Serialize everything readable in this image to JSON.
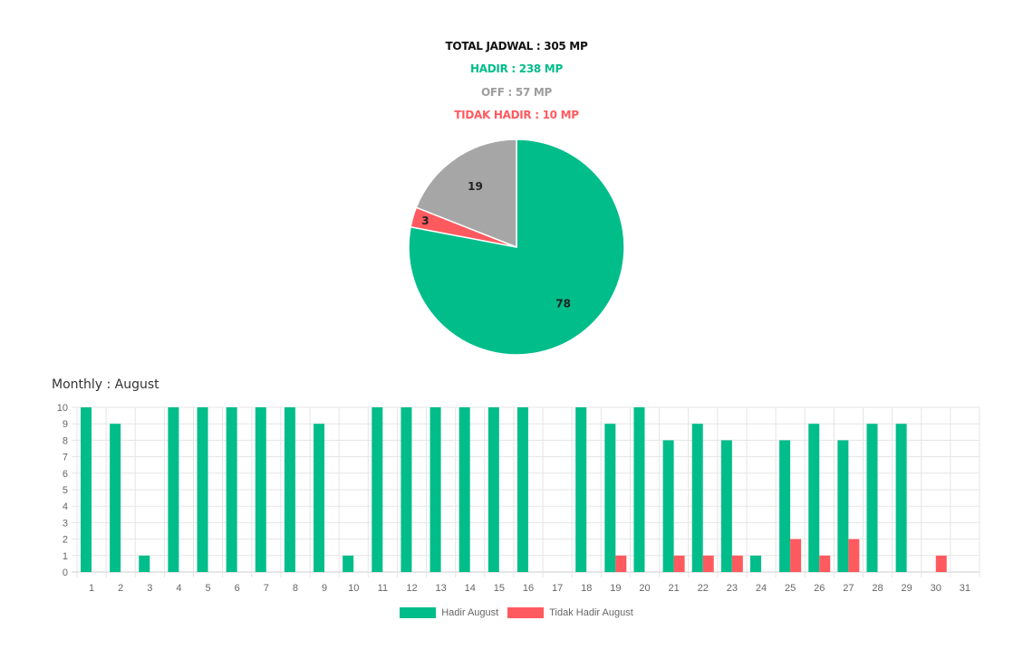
{
  "summary": {
    "total": "TOTAL JADWAL : 305 MP",
    "hadir": "HADIR : 238 MP",
    "off": "OFF : 57 MP",
    "tidak_hadir": "TIDAK HADIR : 10 MP"
  },
  "colors": {
    "total": "#111111",
    "hadir": "#00bd8a",
    "off": "#9e9e9e",
    "tidak_hadir": "#ff5a5f",
    "pie_off": "#a6a6a6",
    "grid": "#e5e5e5",
    "axis_text": "#666666"
  },
  "monthly_title": "Monthly : August",
  "legend": {
    "hadir": "Hadir August",
    "tidak_hadir": "Tidak Hadir August"
  },
  "chart_data": [
    {
      "type": "pie",
      "labels": [
        "Hadir",
        "Tidak Hadir",
        "Off"
      ],
      "values": [
        78,
        3,
        19
      ],
      "data_labels": [
        "78",
        "3",
        "19"
      ]
    },
    {
      "type": "bar",
      "categories": [
        "1",
        "2",
        "3",
        "4",
        "5",
        "6",
        "7",
        "8",
        "9",
        "10",
        "11",
        "12",
        "13",
        "14",
        "15",
        "16",
        "17",
        "18",
        "19",
        "20",
        "21",
        "22",
        "23",
        "24",
        "25",
        "26",
        "27",
        "28",
        "29",
        "30",
        "31"
      ],
      "series": [
        {
          "name": "Hadir August",
          "values": [
            10,
            9,
            1,
            10,
            10,
            10,
            10,
            10,
            9,
            1,
            10,
            10,
            10,
            10,
            10,
            10,
            0,
            10,
            9,
            10,
            8,
            9,
            8,
            1,
            8,
            9,
            8,
            9,
            9,
            0,
            0
          ]
        },
        {
          "name": "Tidak Hadir August",
          "values": [
            0,
            0,
            0,
            0,
            0,
            0,
            0,
            0,
            0,
            0,
            0,
            0,
            0,
            0,
            0,
            0,
            0,
            0,
            1,
            0,
            1,
            1,
            1,
            0,
            2,
            1,
            2,
            0,
            0,
            1,
            0
          ]
        }
      ],
      "ylim": [
        0,
        10
      ],
      "yticks": [
        "0",
        "1",
        "2",
        "3",
        "4",
        "5",
        "6",
        "7",
        "8",
        "9",
        "10"
      ],
      "grid": true,
      "legend_position": "bottom"
    }
  ]
}
